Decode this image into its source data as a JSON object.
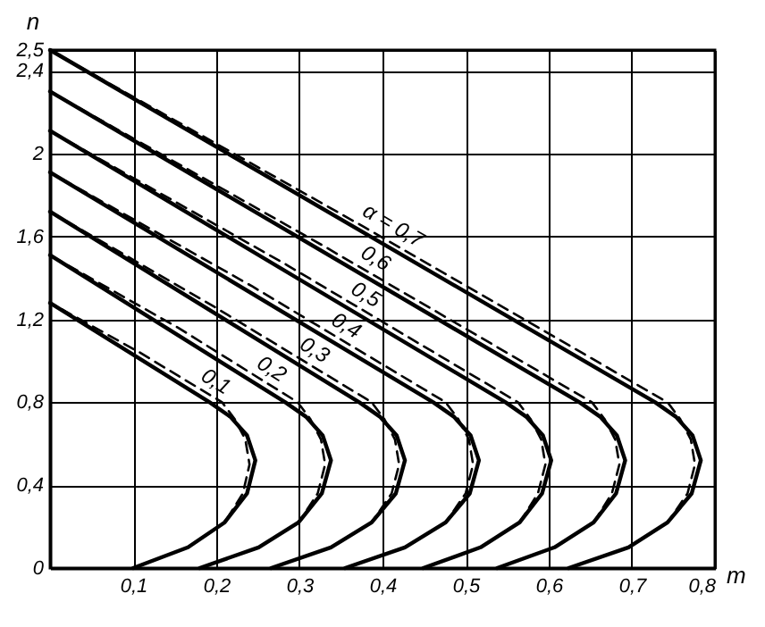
{
  "chart_data": {
    "type": "line",
    "xlabel": "m",
    "ylabel": "n",
    "xlim": [
      0,
      0.8
    ],
    "xticks": [
      {
        "value": 0.1,
        "label": "0,1"
      },
      {
        "value": 0.2,
        "label": "0,2"
      },
      {
        "value": 0.3,
        "label": "0,3"
      },
      {
        "value": 0.4,
        "label": "0,4"
      },
      {
        "value": 0.5,
        "label": "0,5"
      },
      {
        "value": 0.6,
        "label": "0,6"
      },
      {
        "value": 0.7,
        "label": "0,7"
      },
      {
        "value": 0.8,
        "label": "0,8"
      }
    ],
    "ylim": [
      0,
      2.5
    ],
    "yticks": [
      0,
      {
        "value": 0.4,
        "label": "0,4"
      },
      {
        "value": 0.8,
        "label": "0,8"
      },
      {
        "value": 1.2,
        "label": "1,2"
      },
      {
        "value": 1.6,
        "label": "1,6"
      },
      2,
      {
        "value": 2.4,
        "label": "2,4"
      },
      {
        "value": 2.5,
        "label": "2,5"
      }
    ],
    "grid": true,
    "marker": "none",
    "series": [
      {
        "name": "0,1",
        "color": "#000000",
        "line_style": "solid",
        "x": [
          0.1,
          0.166,
          0.21,
          0.237,
          0.247,
          0.237,
          0.217,
          0.192,
          0
        ],
        "values": [
          0,
          0.1,
          0.22,
          0.36,
          0.52,
          0.64,
          0.73,
          0.8,
          1.28
        ]
      },
      {
        "name": "0,2",
        "color": "#000000",
        "line_style": "solid",
        "x": [
          0.18,
          0.251,
          0.299,
          0.327,
          0.338,
          0.328,
          0.308,
          0.283,
          0
        ],
        "values": [
          0,
          0.1,
          0.22,
          0.36,
          0.52,
          0.64,
          0.73,
          0.8,
          1.51
        ]
      },
      {
        "name": "0,3",
        "color": "#000000",
        "line_style": "solid",
        "x": [
          0.266,
          0.338,
          0.387,
          0.416,
          0.427,
          0.417,
          0.397,
          0.372,
          0
        ],
        "values": [
          0,
          0.1,
          0.22,
          0.36,
          0.52,
          0.64,
          0.73,
          0.8,
          1.72
        ]
      },
      {
        "name": "0,4",
        "color": "#000000",
        "line_style": "solid",
        "x": [
          0.355,
          0.427,
          0.476,
          0.505,
          0.516,
          0.506,
          0.486,
          0.461,
          0
        ],
        "values": [
          0,
          0.1,
          0.22,
          0.36,
          0.52,
          0.64,
          0.73,
          0.8,
          1.91
        ]
      },
      {
        "name": "0,5",
        "color": "#000000",
        "line_style": "solid",
        "x": [
          0.449,
          0.518,
          0.565,
          0.592,
          0.603,
          0.593,
          0.573,
          0.548,
          0
        ],
        "values": [
          0,
          0.1,
          0.22,
          0.36,
          0.52,
          0.64,
          0.73,
          0.8,
          2.11
        ]
      },
      {
        "name": "0,6",
        "color": "#000000",
        "line_style": "solid",
        "x": [
          0.538,
          0.607,
          0.654,
          0.681,
          0.692,
          0.682,
          0.662,
          0.637,
          0
        ],
        "values": [
          0,
          0.1,
          0.22,
          0.36,
          0.52,
          0.64,
          0.73,
          0.8,
          2.3
        ]
      },
      {
        "name": "α = 0,7",
        "color": "#000000",
        "line_style": "solid",
        "x": [
          0.624,
          0.696,
          0.743,
          0.772,
          0.783,
          0.773,
          0.753,
          0.728,
          0
        ],
        "values": [
          0,
          0.1,
          0.22,
          0.36,
          0.52,
          0.64,
          0.73,
          0.8,
          2.5
        ]
      },
      {
        "color": "#000000",
        "line_style": "dashed",
        "x": [
          0.1,
          0.166,
          0.21,
          0.232,
          0.24,
          0.235,
          0.222,
          0.207,
          0.108,
          0
        ],
        "values": [
          0,
          0.1,
          0.22,
          0.36,
          0.5,
          0.62,
          0.72,
          0.8,
          1.04,
          1.28
        ]
      },
      {
        "color": "#000000",
        "line_style": "dashed",
        "x": [
          0.18,
          0.251,
          0.299,
          0.322,
          0.331,
          0.326,
          0.313,
          0.298,
          0.154,
          0
        ],
        "values": [
          0,
          0.1,
          0.22,
          0.36,
          0.5,
          0.62,
          0.72,
          0.8,
          1.16,
          1.51
        ]
      },
      {
        "color": "#000000",
        "line_style": "dashed",
        "x": [
          0.266,
          0.338,
          0.387,
          0.411,
          0.42,
          0.415,
          0.402,
          0.387,
          0.198,
          0
        ],
        "values": [
          0,
          0.1,
          0.22,
          0.36,
          0.5,
          0.62,
          0.72,
          0.8,
          1.26,
          1.72
        ]
      },
      {
        "color": "#000000",
        "line_style": "dashed",
        "x": [
          0.355,
          0.427,
          0.476,
          0.5,
          0.509,
          0.504,
          0.491,
          0.476,
          0.243,
          0
        ],
        "values": [
          0,
          0.1,
          0.22,
          0.36,
          0.5,
          0.62,
          0.72,
          0.8,
          1.36,
          1.91
        ]
      },
      {
        "color": "#000000",
        "line_style": "dashed",
        "x": [
          0.449,
          0.518,
          0.565,
          0.587,
          0.596,
          0.591,
          0.578,
          0.563,
          0.286,
          0
        ],
        "values": [
          0,
          0.1,
          0.22,
          0.36,
          0.5,
          0.62,
          0.72,
          0.8,
          1.46,
          2.11
        ]
      },
      {
        "color": "#000000",
        "line_style": "dashed",
        "x": [
          0.538,
          0.607,
          0.654,
          0.676,
          0.685,
          0.68,
          0.667,
          0.652,
          0.331,
          0
        ],
        "values": [
          0,
          0.1,
          0.22,
          0.36,
          0.5,
          0.62,
          0.72,
          0.8,
          1.55,
          2.3
        ]
      },
      {
        "color": "#000000",
        "line_style": "dashed",
        "x": [
          0.624,
          0.696,
          0.743,
          0.767,
          0.776,
          0.771,
          0.758,
          0.743,
          0.376,
          0
        ],
        "values": [
          0,
          0.1,
          0.22,
          0.36,
          0.5,
          0.62,
          0.72,
          0.8,
          1.65,
          2.5
        ]
      }
    ]
  }
}
